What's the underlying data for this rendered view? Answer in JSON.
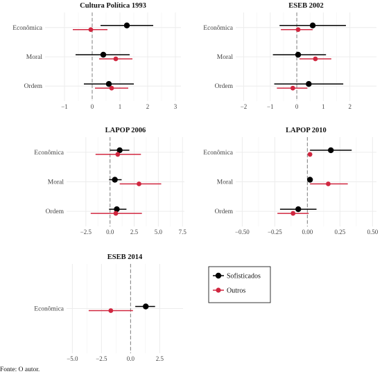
{
  "chart_data": [
    {
      "type": "scatter",
      "title": "Cultura Política 1993",
      "categories": [
        "Econômica",
        "Moral",
        "Ordem"
      ],
      "xlim": [
        -1.7,
        3.2
      ],
      "xticks": [
        -1,
        0,
        1,
        2,
        3
      ],
      "tick_labels": [
        "−1",
        "0",
        "1",
        "2",
        "3"
      ],
      "series": [
        {
          "name": "Sofisticados",
          "values": [
            1.25,
            0.4,
            0.6
          ],
          "ci_low": [
            0.3,
            -0.6,
            -0.3
          ],
          "ci_high": [
            2.2,
            1.35,
            1.5
          ]
        },
        {
          "name": "Outros",
          "values": [
            -0.05,
            0.85,
            0.7
          ],
          "ci_low": [
            -0.7,
            0.25,
            0.1
          ],
          "ci_high": [
            0.55,
            1.45,
            1.3
          ]
        }
      ]
    },
    {
      "type": "scatter",
      "title": "ESEB 2002",
      "categories": [
        "Econômica",
        "Moral",
        "Ordem"
      ],
      "xlim": [
        -2.3,
        3.0
      ],
      "xticks": [
        -2,
        -1,
        0,
        1,
        2
      ],
      "tick_labels": [
        "−2",
        "−1",
        "0",
        "1",
        "2"
      ],
      "series": [
        {
          "name": "Sofisticados",
          "values": [
            0.6,
            0.05,
            0.45
          ],
          "ci_low": [
            -0.65,
            -0.9,
            -0.85
          ],
          "ci_high": [
            1.85,
            1.1,
            1.75
          ]
        },
        {
          "name": "Outros",
          "values": [
            0.05,
            0.7,
            -0.15
          ],
          "ci_low": [
            -0.6,
            0.1,
            -0.75
          ],
          "ci_high": [
            0.6,
            1.3,
            0.4
          ]
        }
      ]
    },
    {
      "type": "scatter",
      "title": "LAPOP 2006",
      "categories": [
        "Econômica",
        "Moral",
        "Ordem"
      ],
      "xlim": [
        -4.5,
        7.7
      ],
      "xticks": [
        -2.5,
        0,
        2.5,
        5,
        7.5
      ],
      "tick_labels": [
        "−2.5",
        "0.0",
        "2.5",
        "5.0",
        "7.5"
      ],
      "series": [
        {
          "name": "Sofisticados",
          "values": [
            1.0,
            0.5,
            0.7
          ],
          "ci_low": [
            0.0,
            -0.1,
            -0.1
          ],
          "ci_high": [
            2.0,
            1.2,
            1.7
          ]
        },
        {
          "name": "Outros",
          "values": [
            0.8,
            3.0,
            0.6
          ],
          "ci_low": [
            -1.5,
            1.0,
            -2.0
          ],
          "ci_high": [
            3.2,
            5.3,
            3.3
          ]
        }
      ]
    },
    {
      "type": "scatter",
      "title": "LAPOP 2010",
      "categories": [
        "Econômica",
        "Moral",
        "Ordem"
      ],
      "xlim": [
        -0.55,
        0.53
      ],
      "xticks": [
        -0.5,
        -0.25,
        0,
        0.25,
        0.5
      ],
      "tick_labels": [
        "−0.50",
        "−0.25",
        "0.00",
        "0.25",
        "0.50"
      ],
      "series": [
        {
          "name": "Sofisticados",
          "values": [
            0.18,
            0.02,
            -0.07
          ],
          "ci_low": [
            0.02,
            null,
            -0.21
          ],
          "ci_high": [
            0.34,
            null,
            0.07
          ]
        },
        {
          "name": "Outros",
          "values": [
            0.02,
            0.16,
            -0.11
          ],
          "ci_low": [
            null,
            0.02,
            -0.23
          ],
          "ci_high": [
            null,
            0.31,
            0.01
          ]
        }
      ]
    },
    {
      "type": "scatter",
      "title": "ESEB 2014",
      "categories": [
        "Econômica"
      ],
      "xlim": [
        -5.5,
        4.5
      ],
      "xticks": [
        -5,
        -2.5,
        0,
        2.5
      ],
      "tick_labels": [
        "−5.0",
        "−2.5",
        "0.0",
        "2.5"
      ],
      "series": [
        {
          "name": "Sofisticados",
          "values": [
            1.3
          ],
          "ci_low": [
            0.4
          ],
          "ci_high": [
            2.1
          ]
        },
        {
          "name": "Outros",
          "values": [
            -1.7
          ],
          "ci_low": [
            -3.6
          ],
          "ci_high": [
            0.2
          ]
        }
      ]
    }
  ],
  "legend": {
    "items": [
      {
        "label": "Sofisticados",
        "color": "#000000"
      },
      {
        "label": "Outros",
        "color": "#d0263f"
      }
    ]
  },
  "colors": {
    "Sofisticados": "#000000",
    "Outros": "#d0263f",
    "zero_line": "#8a8a8a",
    "grid": "#ececec"
  },
  "source_text": "Fonte: O autor."
}
